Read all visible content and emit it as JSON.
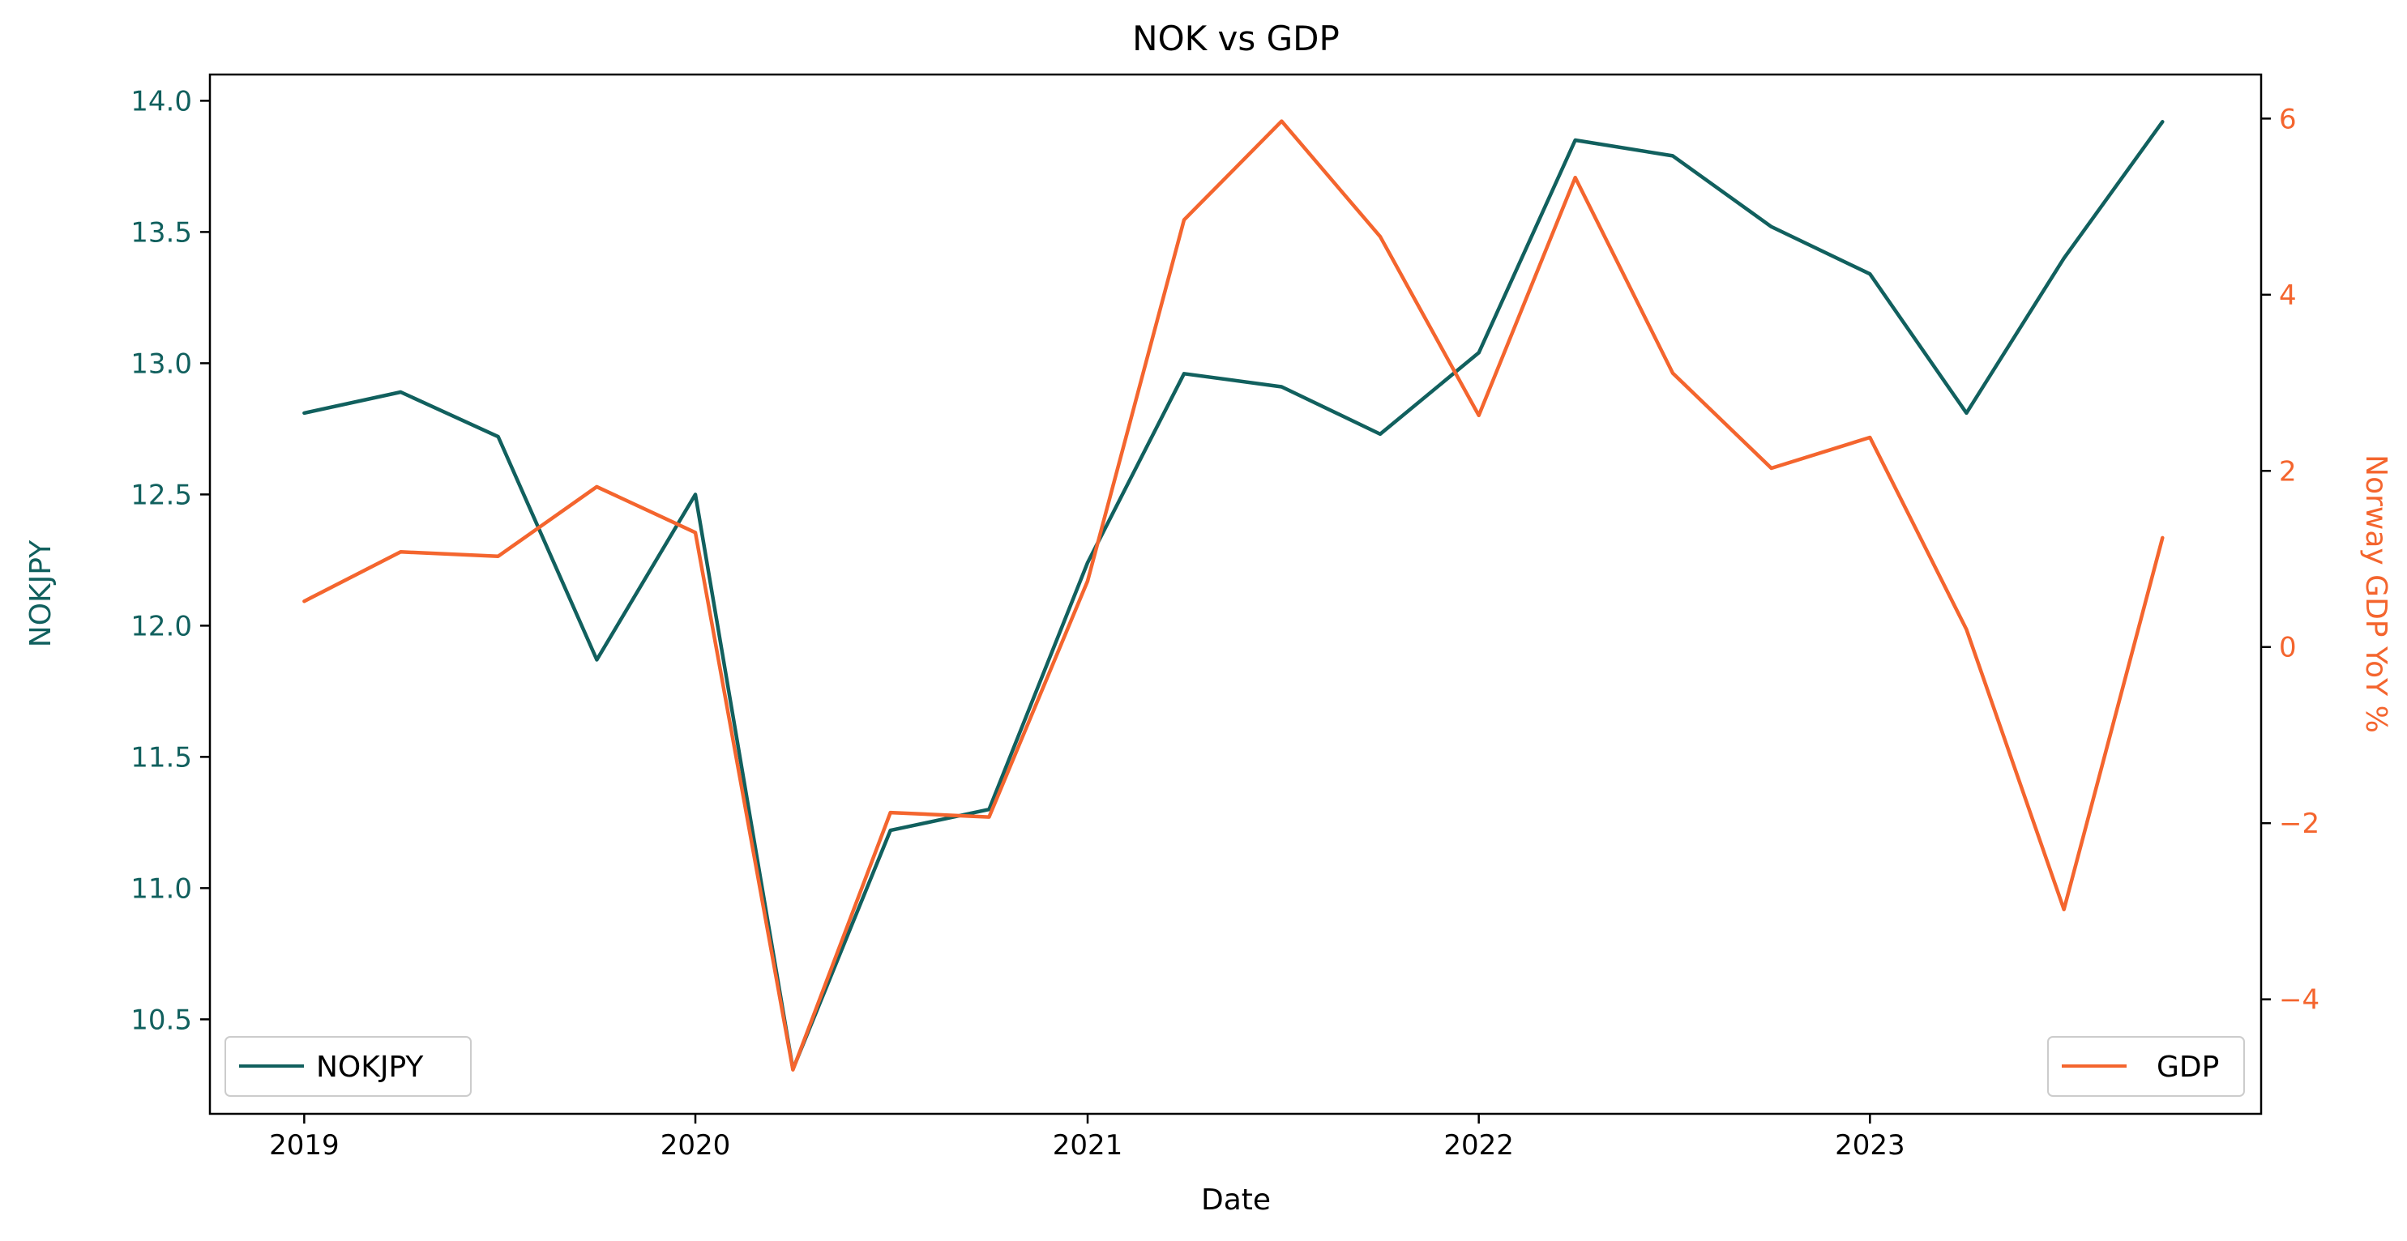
{
  "chart_data": {
    "type": "line",
    "title": "NOK vs GDP",
    "xlabel": "Date",
    "x": [
      "2019-01-01",
      "2019-04-01",
      "2019-07-01",
      "2019-10-01",
      "2020-01-01",
      "2020-04-01",
      "2020-07-01",
      "2020-10-01",
      "2021-01-01",
      "2021-04-01",
      "2021-07-01",
      "2021-10-01",
      "2022-01-01",
      "2022-04-01",
      "2022-07-01",
      "2022-10-01",
      "2023-01-01",
      "2023-04-01",
      "2023-07-01",
      "2023-10-01"
    ],
    "x_ticks": [
      {
        "date": "2019-01-01",
        "label": "2019"
      },
      {
        "date": "2020-01-01",
        "label": "2020"
      },
      {
        "date": "2021-01-01",
        "label": "2021"
      },
      {
        "date": "2022-01-01",
        "label": "2022"
      },
      {
        "date": "2023-01-01",
        "label": "2023"
      }
    ],
    "left_axis": {
      "label": "NOKJPY",
      "color": "#11605e",
      "ylim": [
        10.14,
        14.1
      ],
      "ticks": [
        "10.5",
        "11.0",
        "11.5",
        "12.0",
        "12.5",
        "13.0",
        "13.5",
        "14.0"
      ]
    },
    "right_axis": {
      "label": "Norway GDP YoY %",
      "color": "#f4652e",
      "ylim": [
        -5.3,
        6.5
      ],
      "ticks": [
        "−4",
        "−2",
        "0",
        "2",
        "4",
        "6"
      ]
    },
    "series": [
      {
        "name": "NOKJPY",
        "axis": "left",
        "color": "#11605e",
        "values": [
          12.81,
          12.89,
          12.72,
          11.87,
          12.5,
          10.31,
          11.22,
          11.3,
          12.24,
          12.96,
          12.91,
          12.73,
          13.04,
          13.85,
          13.79,
          13.52,
          13.34,
          12.81,
          13.4,
          13.92
        ]
      },
      {
        "name": "GDP",
        "axis": "right",
        "color": "#f4652e",
        "values": [
          0.52,
          1.08,
          1.03,
          1.82,
          1.3,
          -4.8,
          -1.88,
          -1.93,
          0.75,
          4.85,
          5.97,
          4.66,
          2.63,
          5.33,
          3.11,
          2.03,
          2.38,
          0.2,
          -2.98,
          1.24
        ]
      }
    ],
    "legend": [
      {
        "series": "NOKJPY",
        "placement": "lower-left"
      },
      {
        "series": "GDP",
        "placement": "lower-right"
      }
    ],
    "grid": false
  }
}
